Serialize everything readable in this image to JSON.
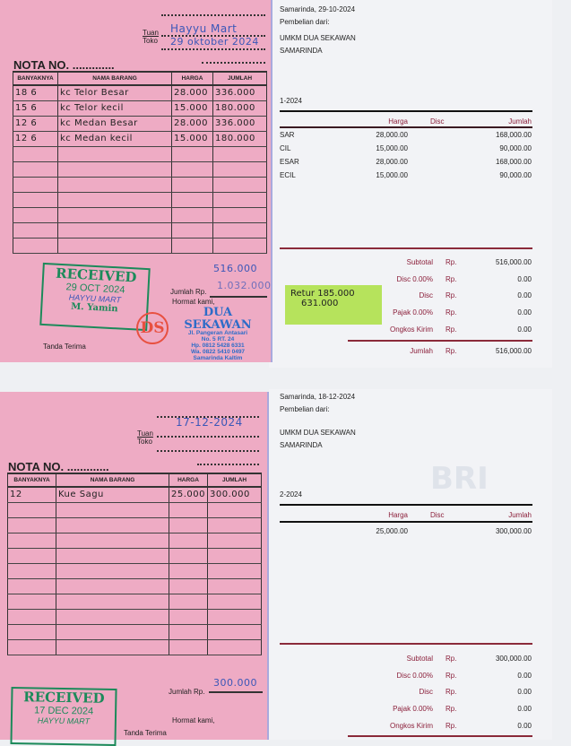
{
  "receipt1": {
    "tuan_label": "Tuan",
    "toko_label": "Toko",
    "tuan_value": "Hayyu Mart",
    "toko_value": "29 oktober 2024",
    "nota_label": "NOTA NO. .............",
    "headers": [
      "BANYAKNYA",
      "NAMA BARANG",
      "HARGA",
      "JUMLAH"
    ],
    "rows": [
      {
        "qty": "18 6",
        "name": "kc Telor Besar",
        "price": "28.000",
        "total": "336.000"
      },
      {
        "qty": "15 6",
        "name": "kc Telor kecil",
        "price": "15.000",
        "total": "180.000"
      },
      {
        "qty": "12 6",
        "name": "kc Medan Besar",
        "price": "28.000",
        "total": "336.000"
      },
      {
        "qty": "12 6",
        "name": "kc Medan kecil",
        "price": "15.000",
        "total": "180.000"
      }
    ],
    "jumlah_label": "Jumlah Rp.",
    "subtotal_hw": "516.000",
    "jumlah_hw": "1.032.000",
    "tanda_terima": "Tanda Terima",
    "hormat_kami": "Hormat kami,",
    "stamp": {
      "title": "RECEIVED",
      "date": "29 OCT 2024",
      "store": "HAYYU MART",
      "name": "M. Yamin"
    },
    "seller_stamp": {
      "logo": "DS",
      "name": "DUA SEKAWAN",
      "addr1": "Jl. Pangeran Antasari",
      "addr2": "No. 5 RT. 24",
      "hp": "Hp. 0812 5428 6331",
      "wa": "Wa. 0822 5410 0497",
      "city": "Samarinda Kaltim"
    }
  },
  "invoice1": {
    "date": "Samarinda, 29-10-2024",
    "from_label": "Pembelian dari:",
    "vendor": "UMKM DUA SEKAWAN",
    "city": "SAMARINDA",
    "ref": "1-2024",
    "headers": {
      "harga": "Harga",
      "disc": "Disc",
      "jumlah": "Jumlah"
    },
    "rows": [
      {
        "name": "SAR",
        "harga": "28,000.00",
        "jumlah": "168,000.00"
      },
      {
        "name": "CIL",
        "harga": "15,000.00",
        "jumlah": "90,000.00"
      },
      {
        "name": "ESAR",
        "harga": "28,000.00",
        "jumlah": "168,000.00"
      },
      {
        "name": "ECIL",
        "harga": "15,000.00",
        "jumlah": "90,000.00"
      }
    ],
    "summary": [
      {
        "label": "Subtotal",
        "cur": "Rp.",
        "value": "516,000.00"
      },
      {
        "label": "Disc  0.00%",
        "cur": "Rp.",
        "value": "0.00"
      },
      {
        "label": "Disc",
        "cur": "Rp.",
        "value": "0.00"
      },
      {
        "label": "Pajak  0.00%",
        "cur": "Rp.",
        "value": "0.00"
      },
      {
        "label": "Ongkos Kirim",
        "cur": "Rp.",
        "value": "0.00"
      }
    ],
    "total": {
      "label": "Jumlah",
      "cur": "Rp.",
      "value": "516,000.00"
    },
    "sticky_note": {
      "line1": "Retur 185.000",
      "line2": "631.000"
    }
  },
  "receipt2": {
    "tuan_label": "Tuan",
    "toko_label": "Toko",
    "date_hw": "17-12-2024",
    "nota_label": "NOTA NO. .............",
    "headers": [
      "BANYAKNYA",
      "NAMA BARANG",
      "HARGA",
      "JUMLAH"
    ],
    "rows": [
      {
        "qty": "12",
        "name": "Kue Sagu",
        "price": "25.000",
        "total": "300.000"
      }
    ],
    "jumlah_label": "Jumlah Rp.",
    "jumlah_hw": "300.000",
    "tanda_terima": "Tanda Terima",
    "hormat_kami": "Hormat kami,",
    "stamp": {
      "title": "RECEIVED",
      "date": "17 DEC 2024",
      "store": "HAYYU MART"
    }
  },
  "invoice2": {
    "date": "Samarinda, 18-12-2024",
    "from_label": "Pembelian dari:",
    "vendor": "UMKM DUA SEKAWAN",
    "city": "SAMARINDA",
    "ref": "2-2024",
    "watermark": "BRI",
    "headers": {
      "harga": "Harga",
      "disc": "Disc",
      "jumlah": "Jumlah"
    },
    "rows": [
      {
        "harga": "25,000.00",
        "jumlah": "300,000.00"
      }
    ],
    "summary": [
      {
        "label": "Subtotal",
        "cur": "Rp.",
        "value": "300,000.00"
      },
      {
        "label": "Disc  0.00%",
        "cur": "Rp.",
        "value": "0.00"
      },
      {
        "label": "Disc",
        "cur": "Rp.",
        "value": "0.00"
      },
      {
        "label": "Pajak  0.00%",
        "cur": "Rp.",
        "value": "0.00"
      },
      {
        "label": "Ongkos Kirim",
        "cur": "Rp.",
        "value": "0.00"
      }
    ]
  },
  "colors": {
    "receipt_pink": "#eeabc4",
    "stamp_green": "#1c8a5a",
    "ink_blue": "#3b57b8",
    "invoice_red": "#8b1f3a",
    "sticky_green": "#b6e35c"
  }
}
